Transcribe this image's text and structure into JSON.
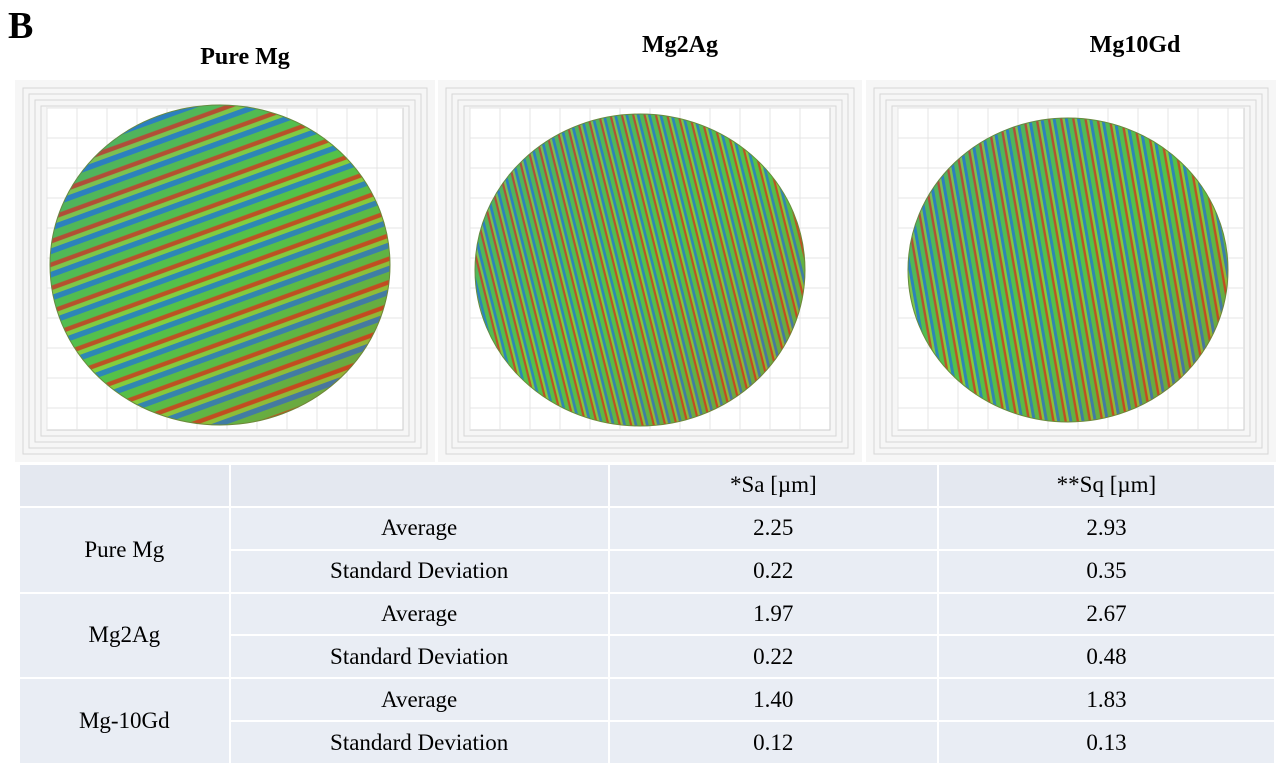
{
  "panel_label": "B",
  "images": [
    {
      "title": "Pure Mg"
    },
    {
      "title": "Mg2Ag"
    },
    {
      "title": "Mg10Gd"
    }
  ],
  "table": {
    "header": [
      "*Sa [µm]",
      "**Sq [µm]"
    ],
    "groups": [
      {
        "name": "Pure Mg",
        "rows": [
          {
            "stat": "Average",
            "values": [
              "2.25",
              "2.93"
            ]
          },
          {
            "stat": "Standard Deviation",
            "values": [
              "0.22",
              "0.35"
            ]
          }
        ]
      },
      {
        "name": "Mg2Ag",
        "rows": [
          {
            "stat": "Average",
            "values": [
              "1.97",
              "2.67"
            ]
          },
          {
            "stat": "Standard Deviation",
            "values": [
              "0.22",
              "0.48"
            ]
          }
        ]
      },
      {
        "name": "Mg-10Gd",
        "rows": [
          {
            "stat": "Average",
            "values": [
              "1.40",
              "1.83"
            ]
          },
          {
            "stat": "Standard Deviation",
            "values": [
              "0.12",
              "0.13"
            ]
          }
        ]
      }
    ]
  }
}
